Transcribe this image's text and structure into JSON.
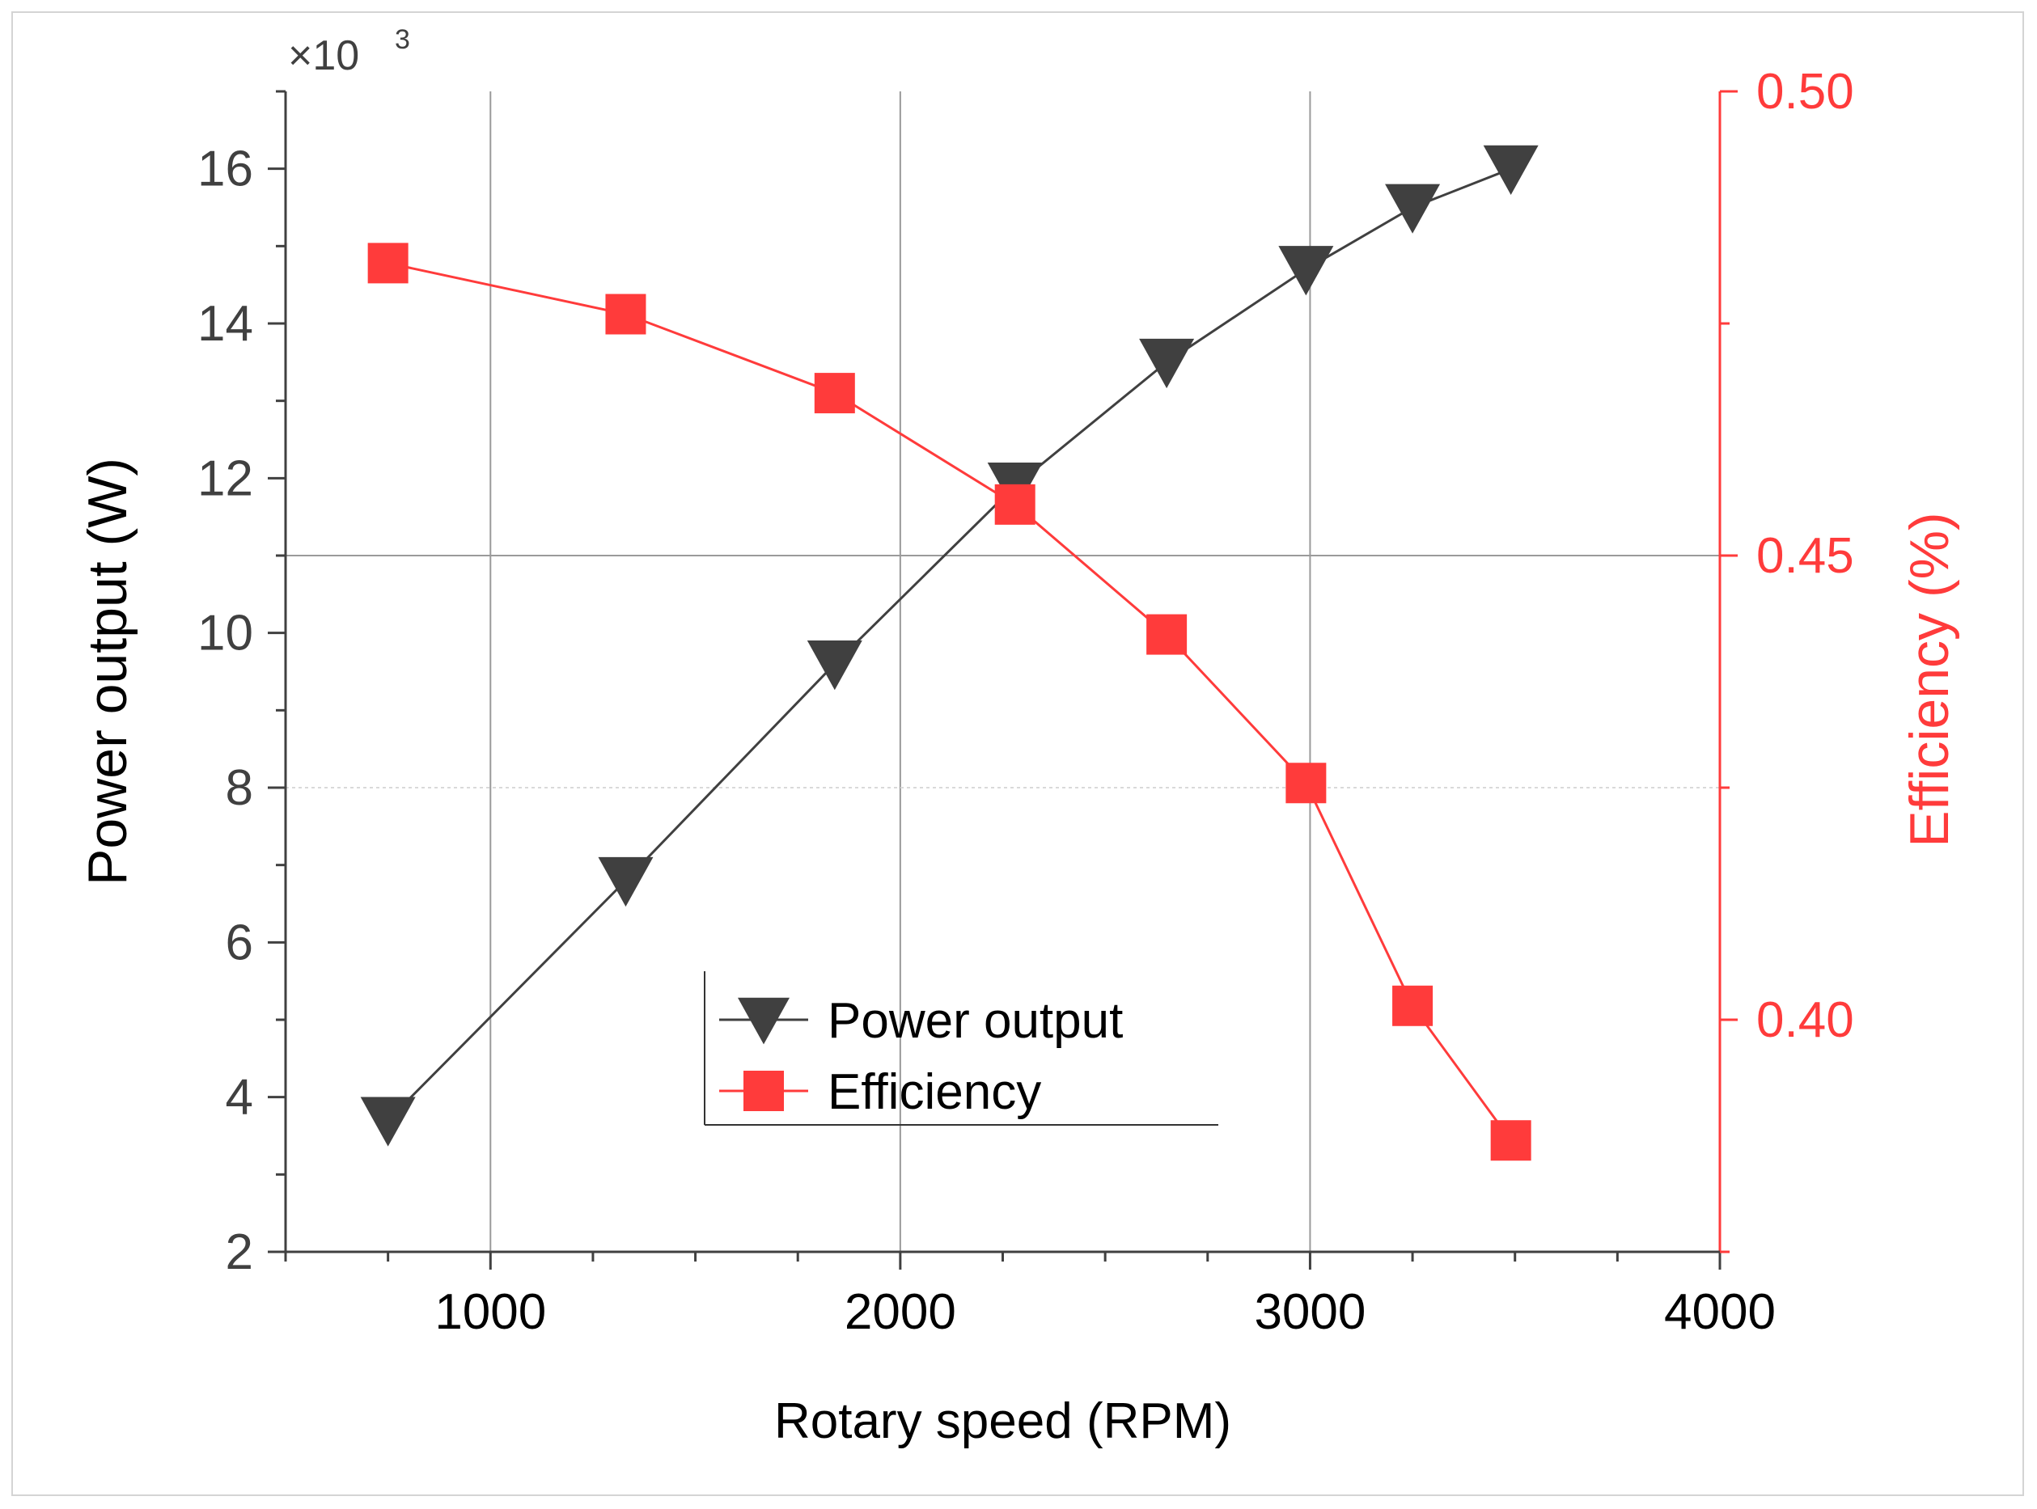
{
  "chart_data": {
    "type": "line",
    "x": [
      750,
      1330,
      1840,
      2280,
      2650,
      2990,
      3250,
      3490
    ],
    "xlabel": "Rotary speed (RPM)",
    "xlim": [
      500,
      4000
    ],
    "xticks": [
      1000,
      2000,
      3000,
      4000
    ],
    "xtick_labels": [
      "1000",
      "2000",
      "3000",
      "4000"
    ],
    "y_left": {
      "label": "Power output (W)",
      "multiplier_label": "×10",
      "multiplier_exp": "3",
      "lim": [
        2,
        17
      ],
      "ticks": [
        2,
        4,
        6,
        8,
        10,
        12,
        14,
        16
      ],
      "tick_labels": [
        "2",
        "4",
        "6",
        "8",
        "10",
        "12",
        "14",
        "16"
      ],
      "color": "#404040"
    },
    "y_right": {
      "label": "Efficiency (%)",
      "lim": [
        0.375,
        0.5
      ],
      "ticks": [
        0.4,
        0.45,
        0.5
      ],
      "tick_labels": [
        "0.40",
        "0.45",
        "0.50"
      ],
      "color": "#ff3b3b"
    },
    "series": [
      {
        "name": "Power output",
        "axis": "left",
        "marker": "triangle-down",
        "color": "#404040",
        "values": [
          3.7,
          6.8,
          9.6,
          11.9,
          13.5,
          14.7,
          15.5,
          16.0
        ]
      },
      {
        "name": "Efficiency",
        "axis": "right",
        "marker": "square",
        "color": "#ff3b3b",
        "values": [
          0.4815,
          0.476,
          0.4675,
          0.4555,
          0.4415,
          0.4255,
          0.4015,
          0.387
        ]
      }
    ],
    "legend": {
      "position": "lower-center",
      "entries": [
        "Power output",
        "Efficiency"
      ]
    },
    "grid": true
  }
}
